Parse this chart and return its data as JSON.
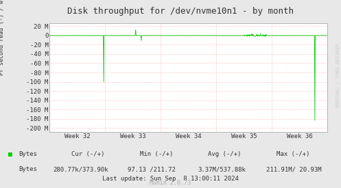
{
  "title": "Disk throughput for /dev/nvme10n1 - by month",
  "ylabel": "Pr second read (-) / write (+)",
  "xlabel_ticks": [
    "Week 32",
    "Week 33",
    "Week 34",
    "Week 35",
    "Week 36"
  ],
  "yticks": [
    20,
    0,
    -20,
    -40,
    -60,
    -80,
    -100,
    -120,
    -140,
    -160,
    -180,
    -200
  ],
  "ytick_labels": [
    "20 M",
    "0",
    "-20 M",
    "-40 M",
    "-60 M",
    "-80 M",
    "-100 M",
    "-120 M",
    "-140 M",
    "-160 M",
    "-180 M",
    "-200 M"
  ],
  "ylim": [
    -208,
    26
  ],
  "bg_color": "#e8e8e8",
  "plot_bg_color": "#ffffff",
  "grid_color": "#ff9999",
  "line_color": "#00cc00",
  "footer_munin": "Munin 2.0.73",
  "rrdtool_label": "RRDTOOL / TOBI OETIKER",
  "n_points": 800
}
